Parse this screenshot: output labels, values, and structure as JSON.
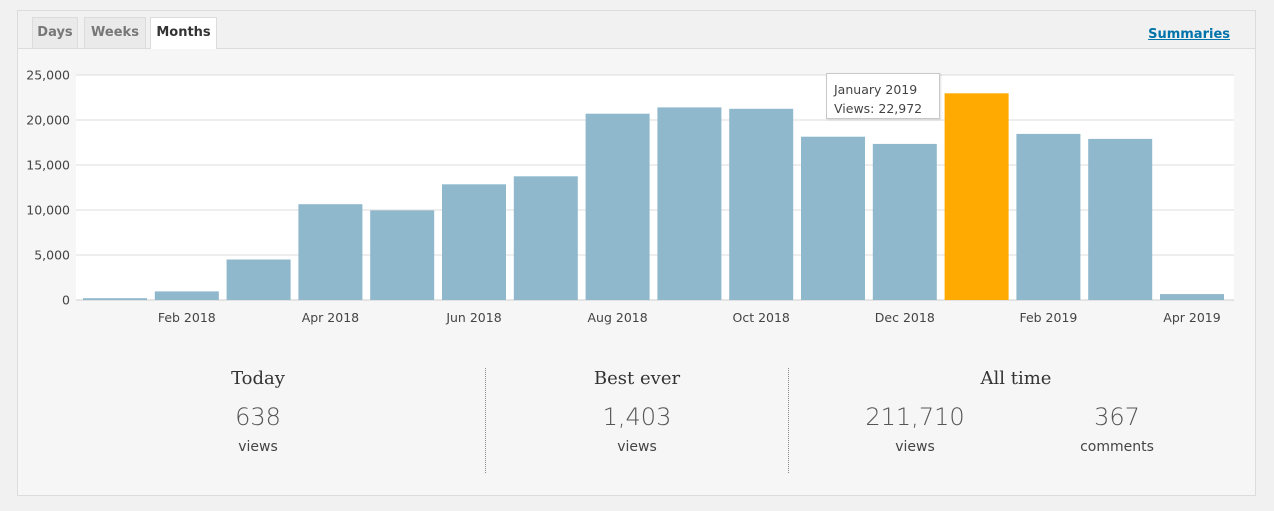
{
  "tabs": [
    {
      "label": "Days"
    },
    {
      "label": "Weeks"
    },
    {
      "label": "Months"
    }
  ],
  "summaries_link": "Summaries",
  "chart_data": {
    "type": "bar",
    "categories": [
      "Jan 2018",
      "Feb 2018",
      "Mar 2018",
      "Apr 2018",
      "May 2018",
      "Jun 2018",
      "Jul 2018",
      "Aug 2018",
      "Sep 2018",
      "Oct 2018",
      "Nov 2018",
      "Dec 2018",
      "Jan 2019",
      "Feb 2019",
      "Mar 2019",
      "Apr 2019"
    ],
    "values": [
      200,
      950,
      4500,
      10650,
      9950,
      12850,
      13750,
      20700,
      21400,
      21250,
      18150,
      17350,
      22972,
      18450,
      17900,
      650
    ],
    "x_tick_labels": [
      "Feb 2018",
      "Apr 2018",
      "Jun 2018",
      "Aug 2018",
      "Oct 2018",
      "Dec 2018",
      "Feb 2019",
      "Apr 2019"
    ],
    "y_ticks": [
      "0",
      "5,000",
      "10,000",
      "15,000",
      "20,000",
      "25,000"
    ],
    "ylim": [
      0,
      25000
    ],
    "grid": true,
    "highlighted_index": 12,
    "bar_color": "#8fb8cc",
    "highlight_color": "#ffaa00"
  },
  "tooltip": {
    "title": "January 2019",
    "value_text": "Views: 22,972"
  },
  "stats": {
    "today": {
      "heading": "Today",
      "value": "638",
      "label": "views"
    },
    "best_ever": {
      "heading": "Best ever",
      "value": "1,403",
      "label": "views"
    },
    "all_time": {
      "heading": "All time",
      "views_value": "211,710",
      "views_label": "views",
      "comments_value": "367",
      "comments_label": "comments"
    }
  }
}
